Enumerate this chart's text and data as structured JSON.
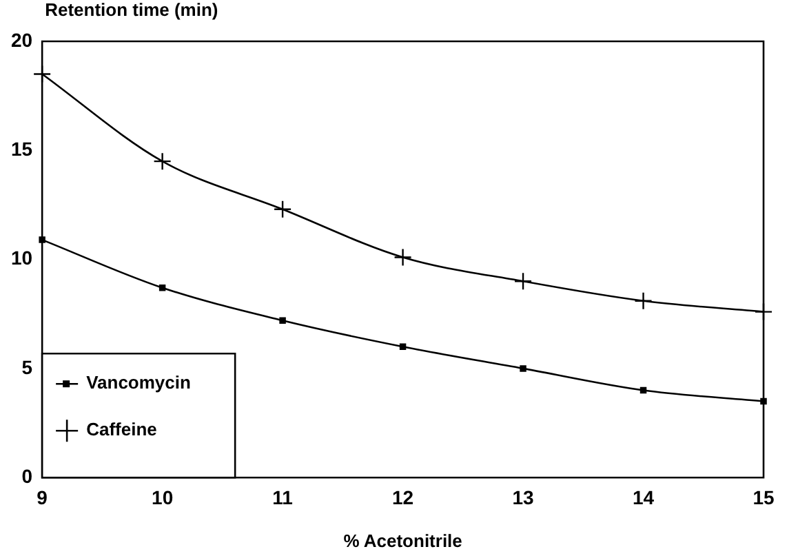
{
  "chart_data": {
    "type": "line",
    "xlabel": "% Acetonitrile",
    "ylabel": "Retention time (min)",
    "x": [
      9,
      10,
      11,
      12,
      13,
      14,
      15
    ],
    "xlim": [
      9,
      15
    ],
    "xticks": [
      9,
      10,
      11,
      12,
      13,
      14,
      15
    ],
    "ylim": [
      0,
      20
    ],
    "yticks": [
      0,
      5,
      10,
      15,
      20
    ],
    "grid": false,
    "legend": "bottom left",
    "series": [
      {
        "name": "Vancomycin",
        "color": "#000000",
        "marker": "square",
        "values": [
          10.9,
          8.7,
          7.2,
          6.0,
          5.0,
          4.0,
          3.5
        ]
      },
      {
        "name": "Caffeine",
        "color": "#000000",
        "marker": "cross",
        "values": [
          18.5,
          14.5,
          12.3,
          10.1,
          9.0,
          8.1,
          7.6
        ]
      }
    ]
  }
}
